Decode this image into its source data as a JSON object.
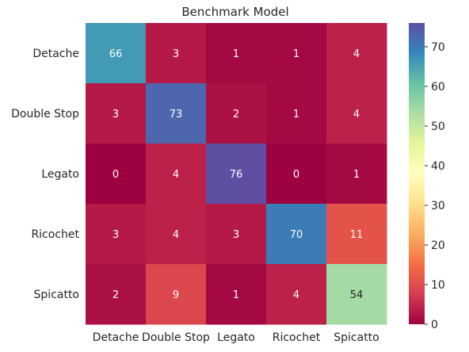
{
  "chart_data": {
    "type": "heatmap",
    "title": "Benchmark Model",
    "rows": [
      "Detache",
      "Double Stop",
      "Legato",
      "Ricochet",
      "Spicatto"
    ],
    "columns": [
      "Detache",
      "Double Stop",
      "Legato",
      "Ricochet",
      "Spicatto"
    ],
    "values": [
      [
        66,
        3,
        1,
        1,
        4
      ],
      [
        3,
        73,
        2,
        1,
        4
      ],
      [
        0,
        4,
        76,
        0,
        1
      ],
      [
        3,
        4,
        3,
        70,
        11
      ],
      [
        2,
        9,
        1,
        4,
        54
      ]
    ],
    "colorbar": {
      "min": 0,
      "max": 76,
      "ticks": [
        0,
        10,
        20,
        30,
        40,
        50,
        60,
        70
      ],
      "colormap": "Spectral"
    },
    "grid": false
  }
}
